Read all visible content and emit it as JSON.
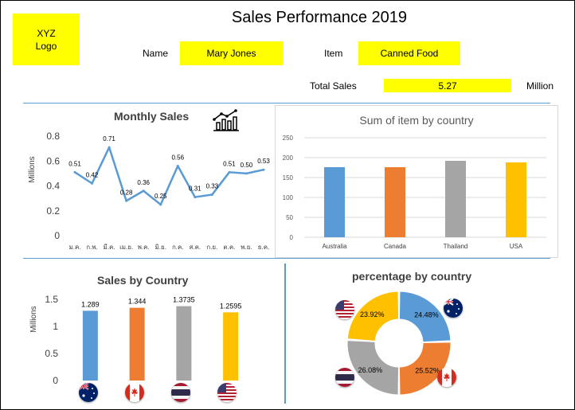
{
  "header": {
    "logo_line1": "XYZ",
    "logo_line2": "Logo",
    "title": "Sales Performance 2019",
    "name_label": "Name",
    "name_value": "Mary Jones",
    "item_label": "Item",
    "item_value": "Canned Food",
    "total_label": "Total Sales",
    "total_value": "5.27",
    "total_unit": "Million"
  },
  "colors": {
    "accent": "#5b9bd5",
    "highlight": "#ffff00",
    "australia": "#5b9bd5",
    "canada": "#ed7d31",
    "thailand": "#a5a5a5",
    "usa": "#ffc000"
  },
  "icons": {
    "monthly_sales": "line-chart-icon",
    "flags": [
      "australia-flag-icon",
      "canada-flag-icon",
      "thailand-flag-icon",
      "usa-flag-icon"
    ]
  },
  "chart_data": [
    {
      "type": "line",
      "title": "Monthly Sales",
      "ylabel": "Millions",
      "x": [
        "ม.ค.",
        "ก.พ.",
        "มี.ค.",
        "เม.ย.",
        "พ.ค.",
        "มิ.ย.",
        "ก.ค.",
        "ส.ค.",
        "ก.ย.",
        "ต.ค.",
        "พ.ย.",
        "ธ.ค."
      ],
      "values": [
        0.51,
        0.42,
        0.71,
        0.28,
        0.36,
        0.25,
        0.56,
        0.31,
        0.33,
        0.51,
        0.5,
        0.53
      ],
      "data_labels": [
        "0.51",
        "0.42",
        "0.71",
        "0.28",
        "0.36",
        "0.25",
        "0.56",
        "0.31",
        "0.33",
        "0.51",
        "0.50",
        "0.53"
      ],
      "yticks": [
        "0.8",
        "0.6",
        "0.4",
        "0.2",
        "0"
      ],
      "ylim": [
        0,
        0.8
      ],
      "grid": false
    },
    {
      "type": "bar",
      "title": "Sum of item by country",
      "categories": [
        "Australia",
        "Canada",
        "Thailand",
        "USA"
      ],
      "values": [
        176,
        176,
        192,
        188
      ],
      "yticks": [
        "250",
        "200",
        "150",
        "100",
        "50",
        "0"
      ],
      "ylim": [
        0,
        250
      ],
      "grid": true
    },
    {
      "type": "bar",
      "title": "Sales by Country",
      "ylabel": "Millions",
      "categories": [
        "Australia",
        "Canada",
        "Thailand",
        "USA"
      ],
      "values": [
        1.289,
        1.344,
        1.3735,
        1.2595
      ],
      "data_labels": [
        "1.289",
        "1.344",
        "1.3735",
        "1.2595"
      ],
      "yticks": [
        "1.5",
        "1",
        "0.5",
        "0"
      ],
      "ylim": [
        0,
        1.5
      ],
      "grid": false
    },
    {
      "type": "pie",
      "title": "percentage by country",
      "categories": [
        "Australia",
        "Canada",
        "Thailand",
        "USA"
      ],
      "values": [
        24.48,
        25.52,
        26.08,
        23.92
      ],
      "data_labels": [
        "24.48%",
        "25.52%",
        "26.08%",
        "23.92%"
      ]
    }
  ]
}
